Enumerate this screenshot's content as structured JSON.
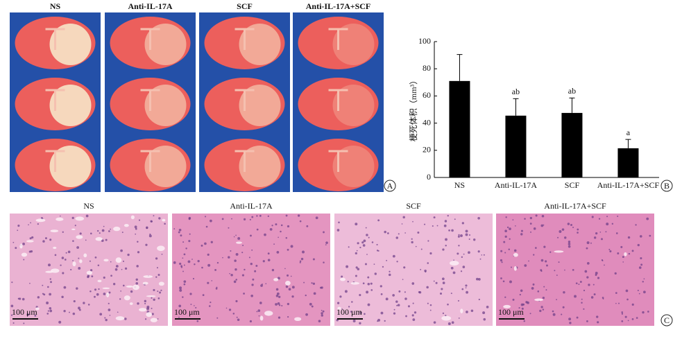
{
  "panel_a": {
    "label": "A",
    "titles": [
      "NS",
      "Anti-IL-17A",
      "SCF",
      "Anti-IL-17A+SCF"
    ]
  },
  "chart_data": {
    "type": "bar",
    "panel_label": "B",
    "y_label": "梗死体积（mm³）",
    "categories": [
      "NS",
      "Anti-IL-17A",
      "SCF",
      "Anti-IL-17A+SCF"
    ],
    "values": [
      71,
      45.5,
      47.5,
      21.5
    ],
    "errors": [
      19.5,
      12.5,
      11,
      6.5
    ],
    "annotations": [
      null,
      "ab",
      "ab",
      "a"
    ],
    "color": "#000000",
    "ylim": [
      0,
      100
    ],
    "yticks": [
      0,
      20,
      40,
      60,
      80,
      100
    ]
  },
  "panel_c": {
    "label": "C",
    "panels": [
      {
        "title": "NS",
        "scale_bar": "100 μm"
      },
      {
        "title": "Anti-IL-17A",
        "scale_bar": "100 μm"
      },
      {
        "title": "SCF",
        "scale_bar": "100 μm"
      },
      {
        "title": "Anti-IL-17A+SCF",
        "scale_bar": "100 μm"
      }
    ]
  }
}
